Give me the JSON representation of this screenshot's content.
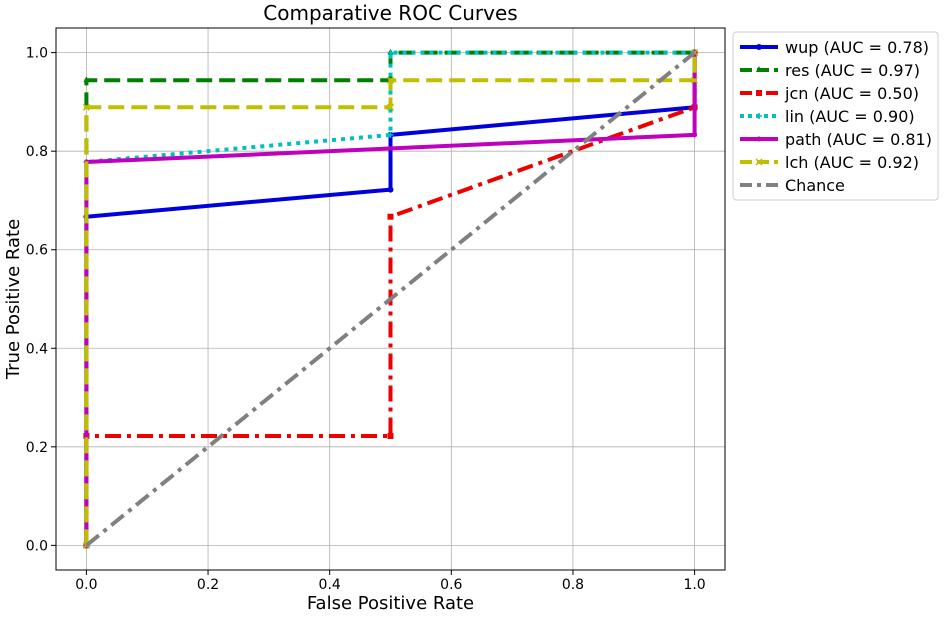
{
  "chart_data": {
    "type": "line",
    "title": "Comparative ROC Curves",
    "xlabel": "False Positive Rate",
    "ylabel": "True Positive Rate",
    "xlim": [
      -0.05,
      1.05
    ],
    "ylim": [
      -0.05,
      1.05
    ],
    "xticks": [
      "0.0",
      "0.2",
      "0.4",
      "0.6",
      "0.8",
      "1.0"
    ],
    "yticks": [
      "0.0",
      "0.2",
      "0.4",
      "0.6",
      "0.8",
      "1.0"
    ],
    "grid": true,
    "legend_position": "outside upper right",
    "series": [
      {
        "name": "wup (AUC = 0.78)",
        "color": "#0000dd",
        "dash": "solid",
        "marker": "circle",
        "x": [
          0,
          0,
          0.5,
          0.5,
          1.0,
          1.0
        ],
        "y": [
          0,
          0.667,
          0.722,
          0.833,
          0.889,
          1.0
        ]
      },
      {
        "name": "res (AUC = 0.97)",
        "color": "#007f00",
        "dash": "dashed",
        "marker": "triangle",
        "x": [
          0,
          0,
          0.5,
          0.5,
          1.0
        ],
        "y": [
          0,
          0.944,
          0.944,
          1.0,
          1.0
        ]
      },
      {
        "name": "jcn (AUC = 0.50)",
        "color": "#ee0000",
        "dash": "dashdot",
        "marker": "square",
        "x": [
          0,
          0,
          0.5,
          0.5,
          1.0,
          1.0
        ],
        "y": [
          0,
          0.222,
          0.222,
          0.667,
          0.889,
          1.0
        ]
      },
      {
        "name": "lin (AUC = 0.90)",
        "color": "#00bfbf",
        "dash": "dotted",
        "marker": "plus",
        "x": [
          0,
          0,
          0.5,
          0.5,
          1.0
        ],
        "y": [
          0,
          0.778,
          0.833,
          1.0,
          1.0
        ]
      },
      {
        "name": "path (AUC = 0.81)",
        "color": "#bf00bf",
        "dash": "solid",
        "marker": "star",
        "x": [
          0,
          0,
          1.0,
          1.0
        ],
        "y": [
          0,
          0.778,
          0.833,
          1.0
        ]
      },
      {
        "name": "lch (AUC = 0.92)",
        "color": "#bfbf00",
        "dash": "dashed",
        "marker": "x",
        "x": [
          0,
          0,
          0.5,
          0.5,
          1.0,
          1.0
        ],
        "y": [
          0,
          0.889,
          0.889,
          0.944,
          0.944,
          1.0
        ]
      },
      {
        "name": "Chance",
        "color": "#808080",
        "dash": "dashdot",
        "marker": "none",
        "x": [
          0,
          1.0
        ],
        "y": [
          0,
          1.0
        ]
      }
    ]
  }
}
